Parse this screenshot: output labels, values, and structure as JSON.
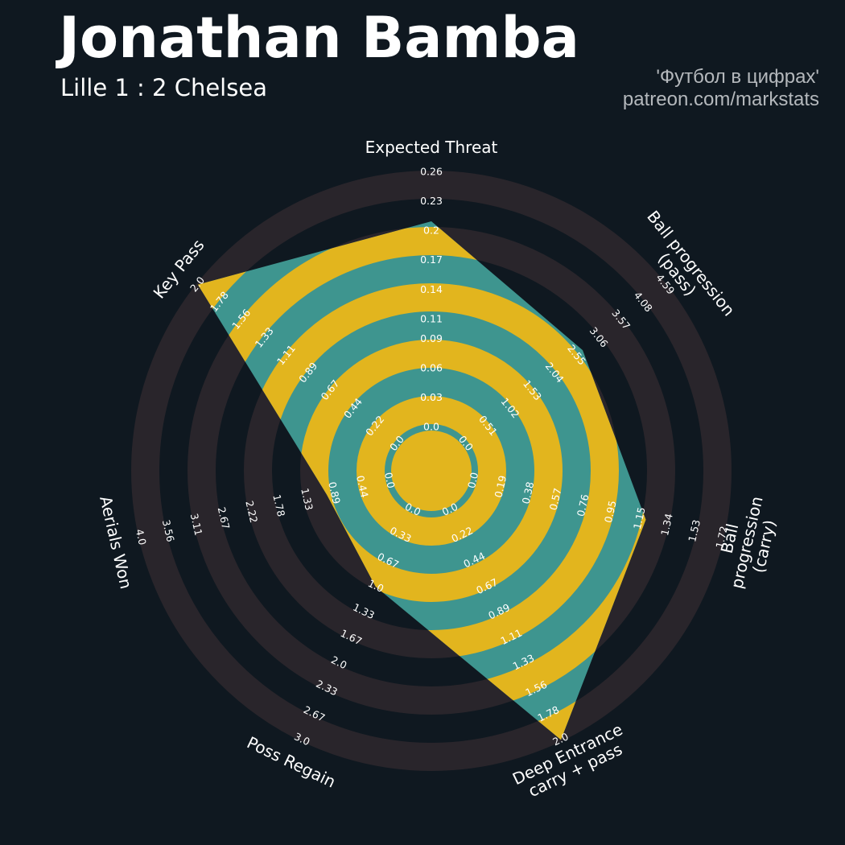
{
  "chart_data": {
    "type": "radar",
    "title": "Jonathan Bamba",
    "subtitle": "Lille 1 : 2 Chelsea",
    "credits": [
      "'Футбол в цифрах'",
      "patreon.com/markstats"
    ],
    "params": [
      "Expected Threat",
      "Ball progression (pass)",
      "Ball progression (carry)",
      "Deep Entrance\ncarry + pass",
      "Poss Regain",
      "Aerials Won",
      "Key Pass"
    ],
    "values": [
      0.21,
      2.7,
      1.19,
      2.0,
      1.0,
      1.0,
      2.0
    ],
    "color": "#3e958f",
    "ring_color": "#e2b51e",
    "outer_ring_color": "#29252b",
    "axes": [
      {
        "lim": [
          0,
          0.26
        ],
        "ticks": [
          {
            "value": 0,
            "label": "0.0"
          },
          0.03,
          0.06,
          0.09,
          0.11,
          0.14,
          0.17,
          0.2,
          0.23,
          0.26
        ]
      },
      {
        "lim": [
          0,
          4.59
        ],
        "ticks": [
          {
            "value": 0,
            "label": "0.0"
          },
          0.51,
          1.02,
          1.53,
          2.04,
          2.55,
          3.06,
          3.57,
          4.08,
          4.59
        ]
      },
      {
        "lim": [
          0,
          1.72
        ],
        "ticks": [
          {
            "value": 0,
            "label": "0.0"
          },
          0.19,
          0.38,
          0.57,
          0.76,
          0.95,
          1.15,
          1.34,
          1.53,
          1.72
        ]
      },
      {
        "lim": [
          0,
          2
        ],
        "ticks": [
          {
            "value": 0,
            "label": "0.0"
          },
          0.22,
          0.44,
          0.67,
          0.89,
          1.11,
          1.33,
          1.56,
          1.78,
          {
            "value": 2,
            "label": "2.0"
          }
        ]
      },
      {
        "lim": [
          0,
          3
        ],
        "ticks": [
          {
            "value": 0,
            "label": "0.0"
          },
          0.33,
          0.67,
          {
            "value": 1,
            "label": "1.0"
          },
          1.33,
          1.67,
          {
            "value": 2,
            "label": "2.0"
          },
          2.33,
          2.67,
          {
            "value": 3,
            "label": "3.0"
          }
        ]
      },
      {
        "lim": [
          0,
          4
        ],
        "ticks": [
          {
            "value": 0,
            "label": "0.0"
          },
          0.44,
          0.89,
          1.33,
          1.78,
          2.22,
          2.67,
          3.11,
          3.56,
          {
            "value": 4,
            "label": "4.0"
          }
        ]
      },
      {
        "lim": [
          0,
          2
        ],
        "ticks": [
          {
            "value": 0,
            "label": "0.0"
          },
          0.22,
          0.44,
          0.67,
          0.89,
          1.11,
          1.33,
          1.56,
          1.78,
          {
            "value": 2,
            "label": "2.0"
          }
        ]
      }
    ]
  }
}
